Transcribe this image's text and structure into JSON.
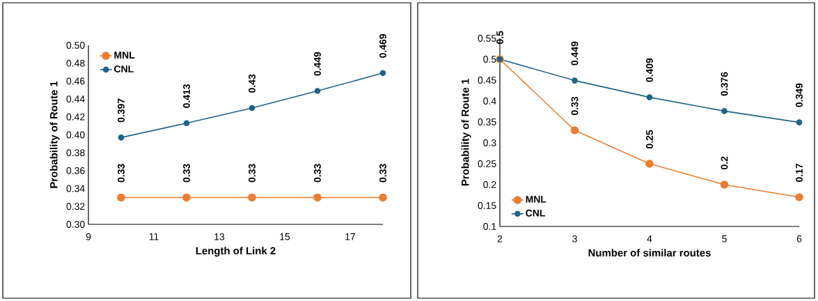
{
  "chart_data": [
    {
      "type": "line",
      "xlabel": "Length of Link 2",
      "ylabel": "Probability of Route 1",
      "x": [
        10,
        12,
        14,
        16,
        18
      ],
      "series": [
        {
          "name": "MNL",
          "color": "#ed7d31",
          "values": [
            0.33,
            0.33,
            0.33,
            0.33,
            0.33
          ]
        },
        {
          "name": "CNL",
          "color": "#1f6388",
          "values": [
            0.397,
            0.413,
            0.43,
            0.449,
            0.469
          ]
        }
      ],
      "xlim": [
        9,
        18
      ],
      "xticks": [
        9,
        11,
        13,
        15,
        17
      ],
      "ylim": [
        0.3,
        0.5
      ],
      "yticks": [
        {
          "value": 0.3,
          "label": "0.30"
        },
        {
          "value": 0.32,
          "label": "0.32"
        },
        {
          "value": 0.34,
          "label": "0.34"
        },
        {
          "value": 0.36,
          "label": "0.36"
        },
        {
          "value": 0.38,
          "label": "0.38"
        },
        {
          "value": 0.4,
          "label": "0.40"
        },
        {
          "value": 0.42,
          "label": "0.42"
        },
        {
          "value": 0.44,
          "label": "0.44"
        },
        {
          "value": 0.46,
          "label": "0.46"
        },
        {
          "value": 0.48,
          "label": "0.48"
        },
        {
          "value": 0.5,
          "label": "0.50"
        }
      ],
      "data_labels": true,
      "legend": "top left",
      "marker": "circle"
    },
    {
      "type": "line",
      "xlabel": "Number of similar routes",
      "ylabel": "Probability of Route 1",
      "x": [
        2,
        3,
        4,
        5,
        6
      ],
      "series": [
        {
          "name": "MNL",
          "color": "#ed7d31",
          "values": [
            0.5,
            0.33,
            0.25,
            0.2,
            0.17
          ],
          "value_labels": [
            null,
            "0.33",
            "0.25",
            "0.2",
            "0.17"
          ]
        },
        {
          "name": "CNL",
          "color": "#1f6388",
          "values": [
            0.5,
            0.449,
            0.409,
            0.376,
            0.349
          ],
          "value_labels": [
            "0.5",
            "0.449",
            "0.409",
            "0.376",
            "0.349"
          ]
        }
      ],
      "xlim": [
        2,
        6
      ],
      "xticks": [
        2,
        3,
        4,
        5,
        6
      ],
      "ylim": [
        0.1,
        0.55
      ],
      "yticks": [
        0.1,
        0.15,
        0.2,
        0.25,
        0.3,
        0.35,
        0.4,
        0.45,
        0.5,
        0.55
      ],
      "legend": "bottom left",
      "marker": "circle"
    }
  ]
}
